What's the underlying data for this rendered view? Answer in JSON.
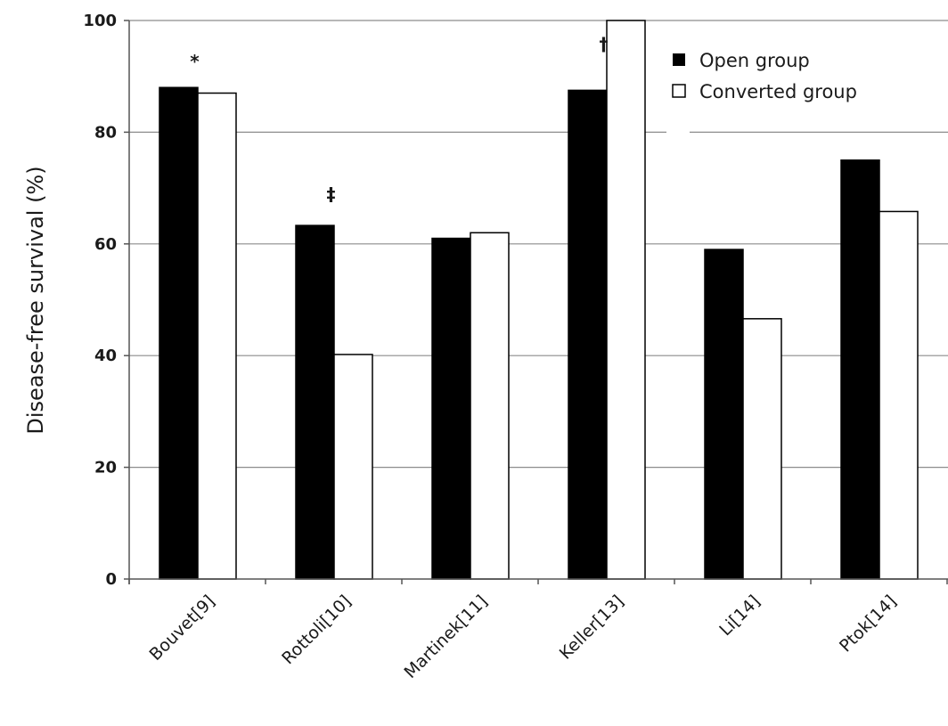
{
  "chart_data": {
    "type": "bar",
    "categories": [
      "Bouvet[9]",
      "Rottoli[10]",
      "Martinek[11]",
      "Keller[13]",
      "Li[14]",
      "Ptok[14]"
    ],
    "series": [
      {
        "name": "Open group",
        "values": [
          88,
          63.3,
          61,
          87.5,
          59,
          75
        ],
        "color": "#000000"
      },
      {
        "name": "Converted group",
        "values": [
          87,
          40.2,
          62,
          100,
          46.6,
          65.8
        ],
        "color": "#ffffff"
      }
    ],
    "annotations": [
      {
        "category": "Bouvet[9]",
        "text": "*"
      },
      {
        "category": "Rottoli[10]",
        "text": "‡"
      },
      {
        "category": "Keller[13]",
        "text": "†"
      }
    ],
    "title": "",
    "xlabel": "",
    "ylabel": "Disease-free survival (%)",
    "ylim": [
      0,
      100
    ],
    "yticks": [
      0,
      20,
      40,
      60,
      80,
      100
    ],
    "grid": true,
    "legend_position": "top-right"
  }
}
